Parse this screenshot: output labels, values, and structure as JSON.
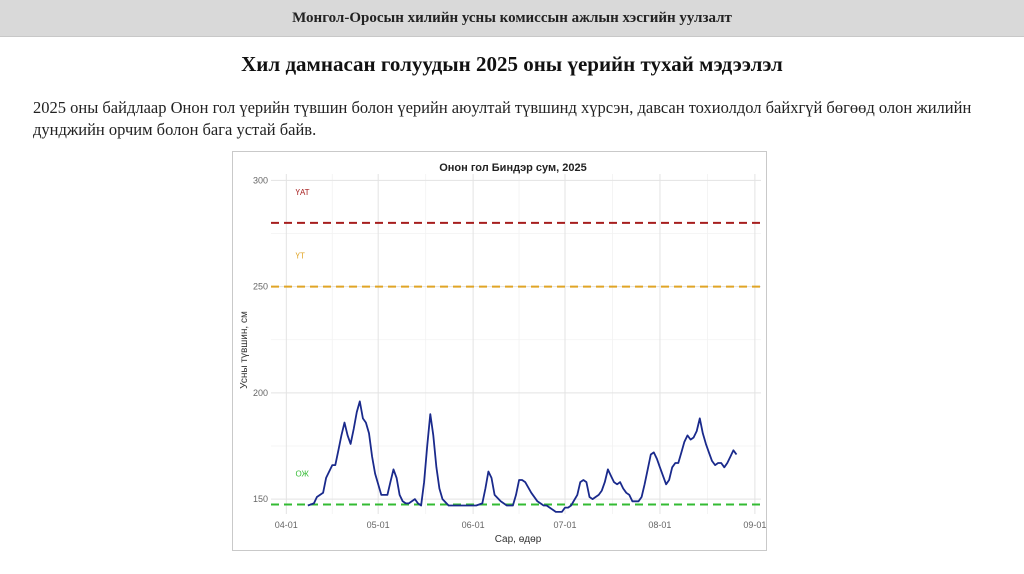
{
  "header": {
    "banner": "Монгол-Оросын хилийн усны комиссын ажлын хэсгийн уулзалт"
  },
  "slide": {
    "title": "Хил дамнасан голуудын 2025 оны үерийн тухай мэдээлэл",
    "text": "2025 оны байдлаар Онон гол үерийн түвшин болон үерийн аюултай түвшинд хүрсэн, давсан тохиолдол байхгүй бөгөөд олон жилийн дунджийн орчим болон бага устай байв."
  },
  "chart_data": {
    "type": "line",
    "title": "Онон гол Биндэр сум, 2025",
    "xlabel": "Сар, өдөр",
    "ylabel": "Усны түвшин, см",
    "x_start": "2025-04-01",
    "x_ticks": [
      {
        "label": "04-01",
        "day": 0
      },
      {
        "label": "05-01",
        "day": 30
      },
      {
        "label": "06-01",
        "day": 61
      },
      {
        "label": "07-01",
        "day": 91
      },
      {
        "label": "08-01",
        "day": 122
      },
      {
        "label": "09-01",
        "day": 153
      }
    ],
    "y_ticks": [
      150,
      200,
      250,
      300
    ],
    "xlim": [
      -5,
      155
    ],
    "ylim": [
      143,
      303
    ],
    "grid": true,
    "thresholds": [
      {
        "name": "ҮАТ",
        "value": 280,
        "color": "#a61e1e"
      },
      {
        "name": "ҮТ",
        "value": 250,
        "color": "#e0a526"
      },
      {
        "name": "ОЖ",
        "value": 147.5,
        "color": "#33bb33"
      }
    ],
    "series": [
      {
        "color": "#1a2a8c",
        "points": [
          [
            7,
            147
          ],
          [
            9,
            148
          ],
          [
            10,
            151
          ],
          [
            12,
            153
          ],
          [
            13,
            160
          ],
          [
            15,
            166
          ],
          [
            16,
            166
          ],
          [
            17,
            173
          ],
          [
            18,
            180
          ],
          [
            19,
            186
          ],
          [
            20,
            180
          ],
          [
            21,
            176
          ],
          [
            22,
            183
          ],
          [
            23,
            191
          ],
          [
            24,
            196
          ],
          [
            25,
            188
          ],
          [
            26,
            186
          ],
          [
            27,
            181
          ],
          [
            28,
            170
          ],
          [
            29,
            162
          ],
          [
            30,
            157
          ],
          [
            31,
            152
          ],
          [
            32,
            152
          ],
          [
            33,
            152
          ],
          [
            34,
            158
          ],
          [
            35,
            164
          ],
          [
            36,
            160
          ],
          [
            37,
            152
          ],
          [
            38,
            149
          ],
          [
            39,
            148
          ],
          [
            40,
            148
          ],
          [
            42,
            150
          ],
          [
            43,
            148
          ],
          [
            44,
            147
          ],
          [
            45,
            158
          ],
          [
            46,
            175
          ],
          [
            47,
            190
          ],
          [
            48,
            180
          ],
          [
            49,
            165
          ],
          [
            50,
            155
          ],
          [
            51,
            150
          ],
          [
            53,
            147
          ],
          [
            56,
            147
          ],
          [
            60,
            147
          ],
          [
            61,
            147
          ],
          [
            62,
            147
          ],
          [
            64,
            148
          ],
          [
            65,
            155
          ],
          [
            66,
            163
          ],
          [
            67,
            160
          ],
          [
            68,
            152
          ],
          [
            70,
            149
          ],
          [
            72,
            147
          ],
          [
            74,
            147
          ],
          [
            75,
            152
          ],
          [
            76,
            159
          ],
          [
            77,
            159
          ],
          [
            78,
            158
          ],
          [
            80,
            153
          ],
          [
            82,
            149
          ],
          [
            83,
            148
          ],
          [
            84,
            147
          ],
          [
            85,
            147
          ],
          [
            87,
            145
          ],
          [
            88,
            144
          ],
          [
            90,
            144
          ],
          [
            91,
            146
          ],
          [
            92,
            146
          ],
          [
            93,
            147
          ],
          [
            95,
            152
          ],
          [
            96,
            158
          ],
          [
            97,
            159
          ],
          [
            98,
            158
          ],
          [
            99,
            151
          ],
          [
            100,
            150
          ],
          [
            101,
            151
          ],
          [
            102,
            152
          ],
          [
            103,
            154
          ],
          [
            104,
            158
          ],
          [
            105,
            164
          ],
          [
            106,
            161
          ],
          [
            107,
            158
          ],
          [
            108,
            157
          ],
          [
            109,
            158
          ],
          [
            110,
            155
          ],
          [
            111,
            153
          ],
          [
            112,
            152
          ],
          [
            113,
            149
          ],
          [
            114,
            149
          ],
          [
            115,
            149
          ],
          [
            116,
            151
          ],
          [
            117,
            157
          ],
          [
            118,
            164
          ],
          [
            119,
            171
          ],
          [
            120,
            172
          ],
          [
            121,
            169
          ],
          [
            122,
            165
          ],
          [
            123,
            161
          ],
          [
            124,
            157
          ],
          [
            125,
            159
          ],
          [
            126,
            165
          ],
          [
            127,
            167
          ],
          [
            128,
            167
          ],
          [
            129,
            172
          ],
          [
            130,
            177
          ],
          [
            131,
            180
          ],
          [
            132,
            178
          ],
          [
            133,
            179
          ],
          [
            134,
            182
          ],
          [
            135,
            188
          ],
          [
            136,
            181
          ],
          [
            137,
            176
          ],
          [
            138,
            172
          ],
          [
            139,
            168
          ],
          [
            140,
            166
          ],
          [
            141,
            167
          ],
          [
            142,
            167
          ],
          [
            143,
            165
          ],
          [
            144,
            167
          ],
          [
            145,
            170
          ],
          [
            146,
            173
          ],
          [
            147,
            171
          ]
        ]
      }
    ]
  }
}
